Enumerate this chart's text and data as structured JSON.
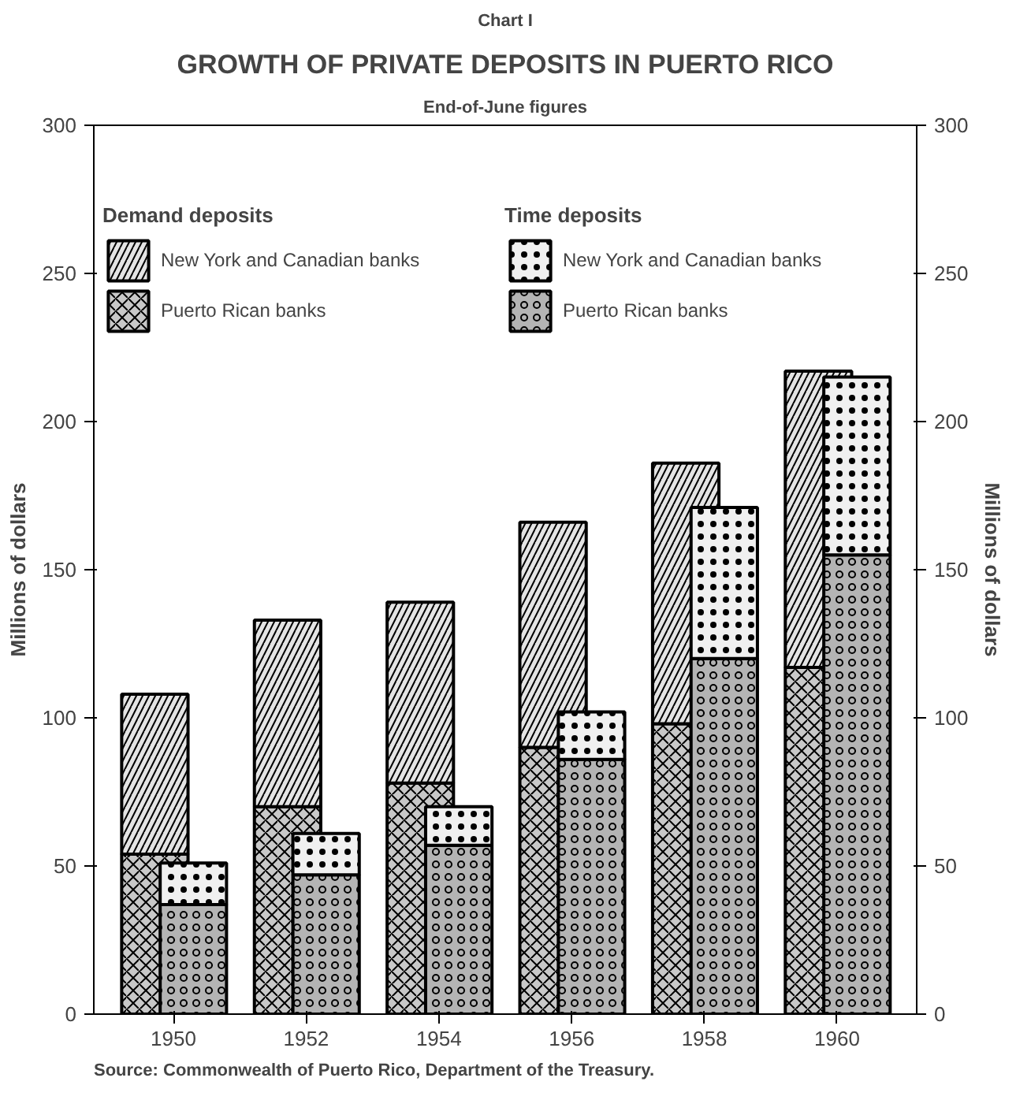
{
  "chart_data": {
    "type": "bar",
    "title": "GROWTH OF PRIVATE DEPOSITS IN PUERTO RICO",
    "subtitle": "End-of-June figures",
    "annotations": [
      "Chart I",
      "Source:  Commonwealth of Puerto Rico, Department of the Treasury."
    ],
    "ylabel": "Millions of dollars",
    "y2label": "Millions of dollars",
    "legend_title": [
      "Demand deposits",
      "Time deposits"
    ],
    "categories": [
      "1950",
      "1952",
      "1954",
      "1956",
      "1958",
      "1960"
    ],
    "series": [
      {
        "name": "Puerto Rican banks",
        "color": "#c8c8c8",
        "base": [
          0,
          0,
          0,
          0,
          0,
          0
        ],
        "values": [
          54,
          70,
          78,
          90,
          98,
          117
        ]
      },
      {
        "name": "New York and Canadian banks",
        "color": "#e4e4e4",
        "base": [
          54,
          70,
          78,
          90,
          98,
          117
        ],
        "values": [
          54,
          63,
          61,
          76,
          88,
          100
        ]
      },
      {
        "name": "Puerto Rican banks",
        "color": "#b4b4b4",
        "base": [
          0,
          0,
          0,
          0,
          0,
          0
        ],
        "values": [
          37,
          47,
          57,
          86,
          120,
          155
        ]
      },
      {
        "name": "New York and Canadian banks",
        "color": "#f0f0f0",
        "base": [
          37,
          47,
          57,
          86,
          120,
          155
        ],
        "values": [
          14,
          14,
          13,
          16,
          51,
          60
        ]
      }
    ],
    "ylim": [
      0,
      300
    ],
    "yticks": [
      0,
      50,
      100,
      150,
      200,
      250,
      300
    ],
    "y2lim": [
      0,
      300
    ],
    "y2ticks": [
      0,
      50,
      100,
      150,
      200,
      250,
      300
    ],
    "grid": false,
    "legend": "top left"
  }
}
